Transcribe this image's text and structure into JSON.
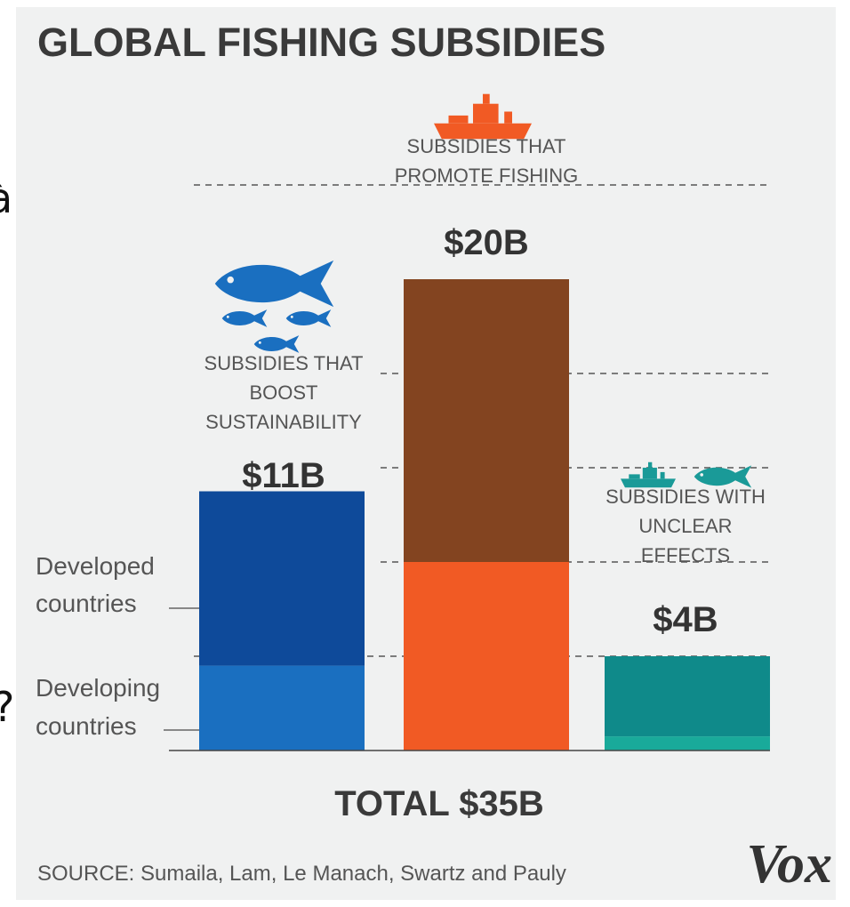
{
  "edge_glyphs": [
    "à",
    "?"
  ],
  "chart_data": {
    "type": "bar",
    "title": "GLOBAL FISHING SUBSIDIES",
    "ylim": [
      0,
      25
    ],
    "grid": "dashed horizontal",
    "categories": [
      "SUBSIDIES THAT BOOST SUSTAINABILITY",
      "SUBSIDIES THAT PROMOTE FISHING",
      "SUBSIDIES WITH UNCLEAR EFFECTS"
    ],
    "category_lines": [
      [
        "SUBSIDIES THAT",
        "BOOST",
        "SUSTAINABILITY"
      ],
      [
        "SUBSIDIES THAT",
        "PROMOTE FISHING"
      ],
      [
        "SUBSIDIES WITH",
        "UNCLEAR",
        "EFFECTS"
      ]
    ],
    "value_labels": [
      "$11B",
      "$20B",
      "$4B"
    ],
    "values": [
      11,
      20,
      4
    ],
    "segments": [
      {
        "developing": 3.6,
        "developed": 7.4
      },
      {
        "developing": 8.0,
        "developed": 12.0
      },
      {
        "developing": 0.6,
        "developed": 3.4
      }
    ],
    "segment_labels": {
      "developed": [
        "Developed",
        "countries"
      ],
      "developing": [
        "Developing",
        "countries"
      ]
    },
    "colors": {
      "sustainability": {
        "developed": "#0e4a9a",
        "developing": "#1a6fc0",
        "icon": "#1a6fc0"
      },
      "fishing": {
        "developed": "#834420",
        "developing": "#f15a24",
        "icon": "#f15a24"
      },
      "unclear": {
        "developed": "#0f8a8a",
        "developing": "#19aa9a",
        "icon": "#1a9a98"
      }
    },
    "icons": [
      "fish-icon",
      "ship-icon"
    ],
    "total": "TOTAL $35B",
    "source": "SOURCE: Sumaila, Lam, Le Manach, Swartz and Pauly",
    "brand": "Vox"
  }
}
